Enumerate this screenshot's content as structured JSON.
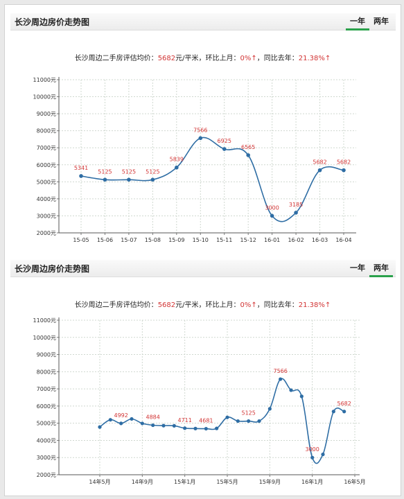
{
  "charts": [
    {
      "header_title": "长沙周边房价走势图",
      "tabs": [
        {
          "label": "一年",
          "active": true
        },
        {
          "label": "两年",
          "active": false
        }
      ],
      "summary": {
        "prefix": "长沙周边二手房评估均价：",
        "price": "5682",
        "unit": "元/平米，环比上月：",
        "mom": "0%",
        "mom_arrow": "↑",
        "yoy_prefix": "，同比去年：",
        "yoy": "21.38%",
        "yoy_arrow": "↑"
      }
    },
    {
      "header_title": "长沙周边房价走势图",
      "tabs": [
        {
          "label": "一年",
          "active": false
        },
        {
          "label": "两年",
          "active": true
        }
      ],
      "summary": {
        "prefix": "长沙周边二手房评估均价：",
        "price": "5682",
        "unit": "元/平米，环比上月：",
        "mom": "0%",
        "mom_arrow": "↑",
        "yoy_prefix": "，同比去年：",
        "yoy": "21.38%",
        "yoy_arrow": "↑"
      }
    }
  ],
  "chart_data": [
    {
      "type": "line",
      "title": "",
      "xlabel": "",
      "ylabel": "",
      "ylim": [
        2000,
        11000
      ],
      "yticks": [
        "2000元",
        "3000元",
        "4000元",
        "5000元",
        "6000元",
        "7000元",
        "8000元",
        "9000元",
        "10000元",
        "11000元"
      ],
      "grid": true,
      "line_color": "#2e6da4",
      "label_color": "#d23434",
      "categories": [
        "15-05",
        "15-06",
        "15-07",
        "15-08",
        "15-09",
        "15-10",
        "15-11",
        "15-12",
        "16-01",
        "16-02",
        "16-03",
        "16-04"
      ],
      "values": [
        5341,
        5125,
        5125,
        5125,
        5839,
        7566,
        6925,
        6565,
        3000,
        3185,
        5682,
        5682
      ],
      "data_labels": [
        "5341",
        "5125",
        "5125",
        "5125",
        "5839",
        "7566",
        "6925",
        "6565",
        "3000",
        "3185",
        "5682",
        "5682"
      ]
    },
    {
      "type": "line",
      "title": "",
      "xlabel": "",
      "ylabel": "",
      "ylim": [
        2000,
        11000
      ],
      "yticks": [
        "2000元",
        "3000元",
        "4000元",
        "5000元",
        "6000元",
        "7000元",
        "8000元",
        "9000元",
        "10000元",
        "11000元"
      ],
      "grid": true,
      "line_color": "#2e6da4",
      "label_color": "#d23434",
      "x_ticks": [
        "14年5月",
        "14年9月",
        "15年1月",
        "15年5月",
        "15年9月",
        "16年1月",
        "16年5月"
      ],
      "x_tick_index": [
        0,
        4,
        8,
        12,
        16,
        20,
        24
      ],
      "points": [
        {
          "i": 0,
          "v": 4780
        },
        {
          "i": 1,
          "v": 5200
        },
        {
          "i": 2,
          "v": 4992
        },
        {
          "i": 3,
          "v": 5250
        },
        {
          "i": 4,
          "v": 4990
        },
        {
          "i": 5,
          "v": 4884
        },
        {
          "i": 6,
          "v": 4860
        },
        {
          "i": 7,
          "v": 4850
        },
        {
          "i": 8,
          "v": 4711
        },
        {
          "i": 9,
          "v": 4690
        },
        {
          "i": 10,
          "v": 4681
        },
        {
          "i": 11,
          "v": 4700
        },
        {
          "i": 12,
          "v": 5341
        },
        {
          "i": 13,
          "v": 5125
        },
        {
          "i": 14,
          "v": 5125
        },
        {
          "i": 15,
          "v": 5125
        },
        {
          "i": 16,
          "v": 5839
        },
        {
          "i": 17,
          "v": 7566
        },
        {
          "i": 18,
          "v": 6925
        },
        {
          "i": 19,
          "v": 6565
        },
        {
          "i": 20,
          "v": 3000
        },
        {
          "i": 21,
          "v": 3185
        },
        {
          "i": 22,
          "v": 5682
        },
        {
          "i": 23,
          "v": 5682
        }
      ],
      "labels": [
        {
          "i": 2,
          "text": "4992"
        },
        {
          "i": 5,
          "text": "4884"
        },
        {
          "i": 8,
          "text": "4711"
        },
        {
          "i": 10,
          "text": "4681"
        },
        {
          "i": 14,
          "text": "5125"
        },
        {
          "i": 17,
          "text": "7566"
        },
        {
          "i": 20,
          "text": "3000"
        },
        {
          "i": 23,
          "text": "5682"
        }
      ]
    }
  ]
}
